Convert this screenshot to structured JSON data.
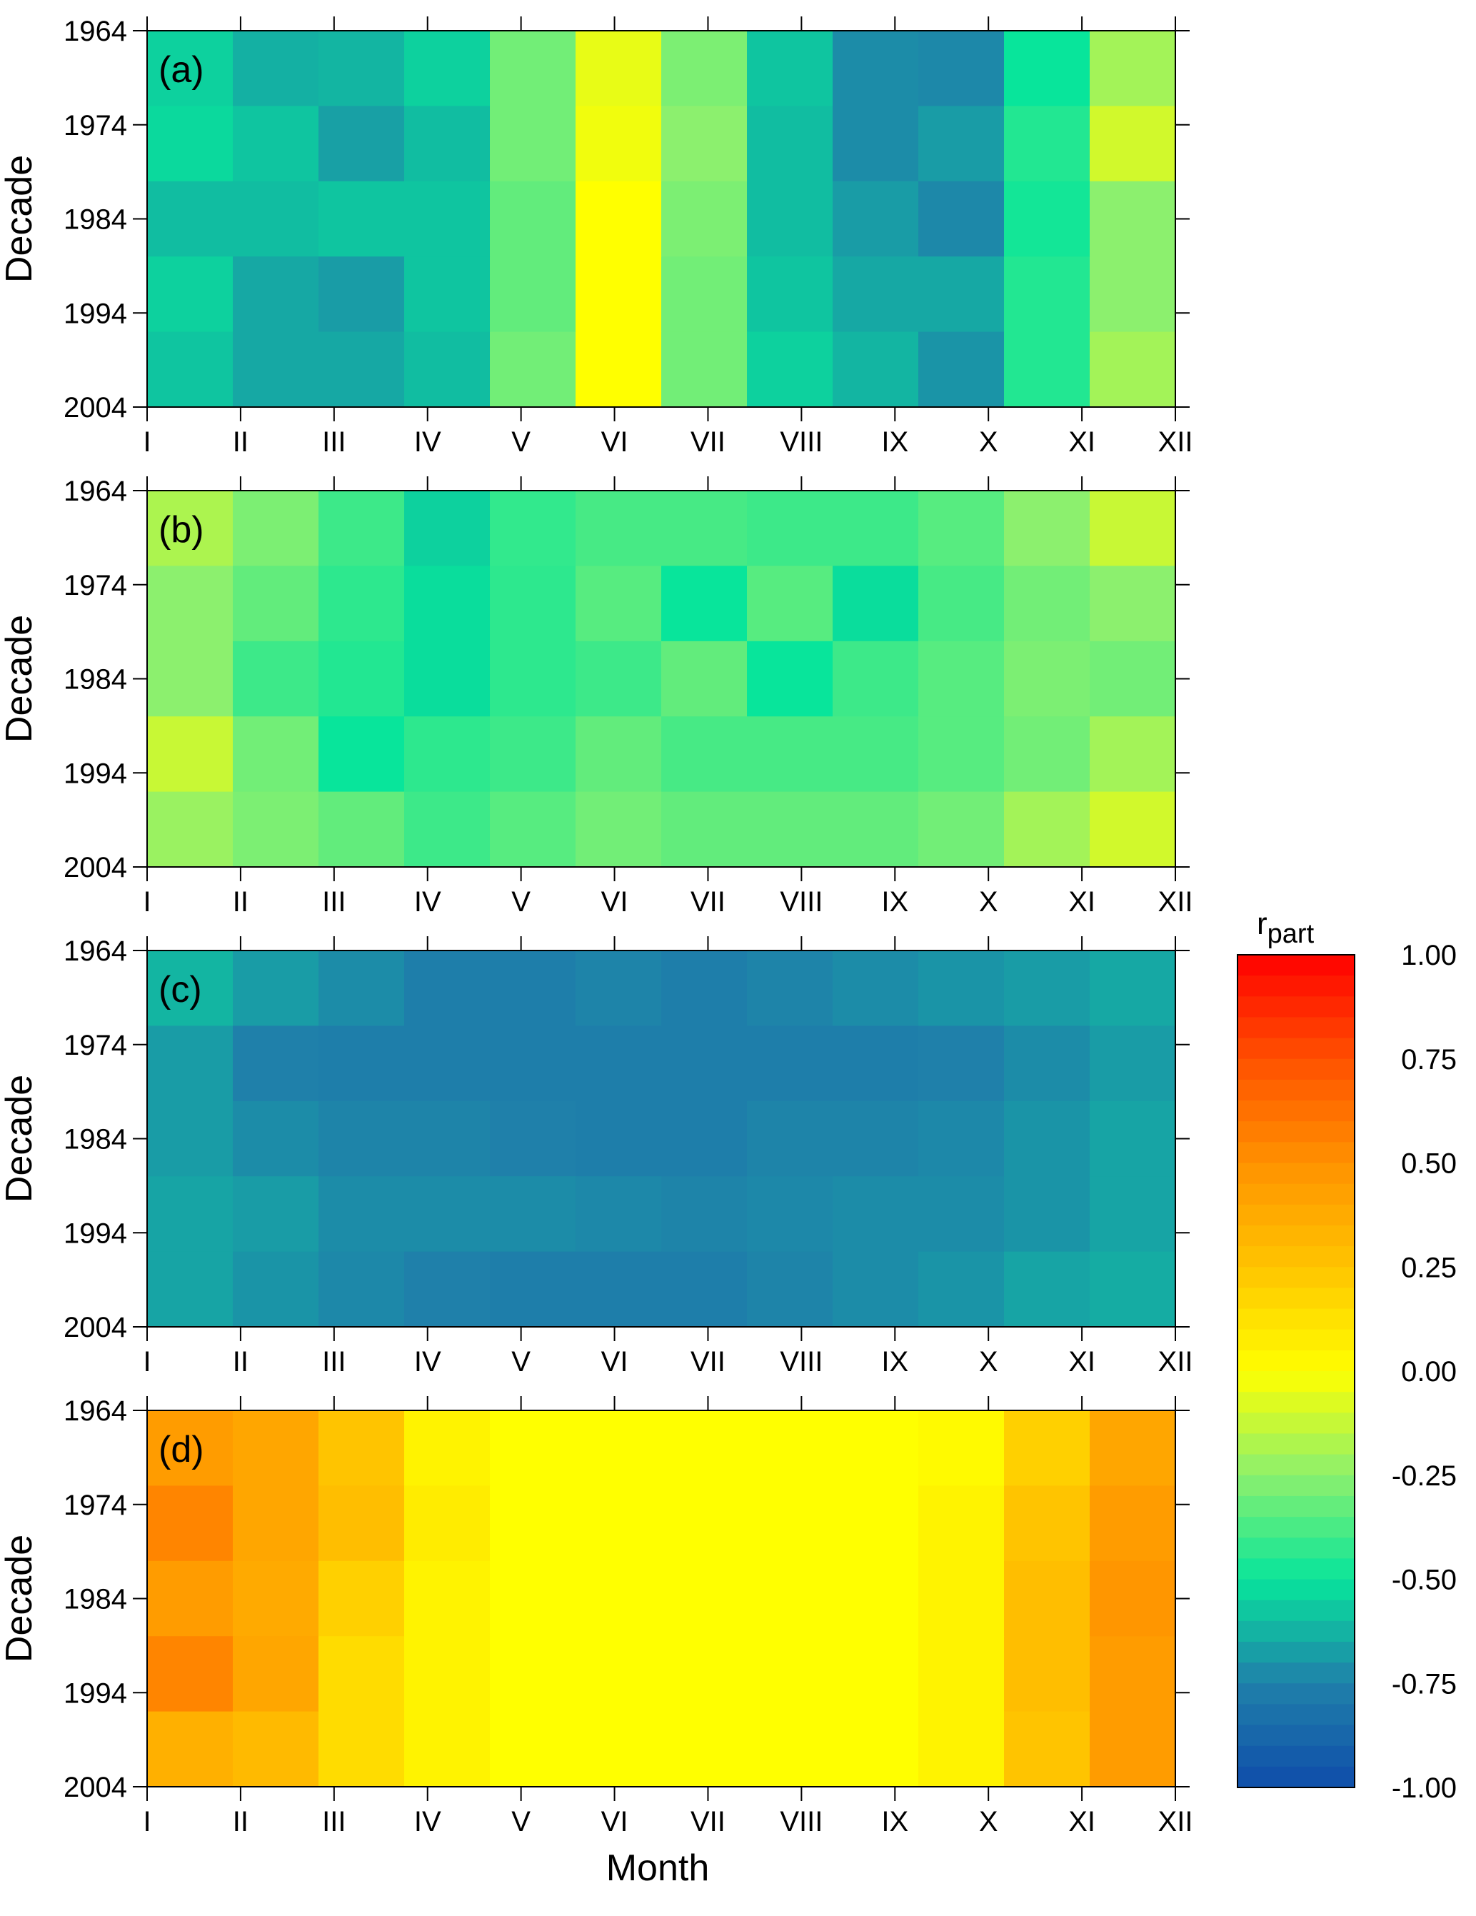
{
  "figure": {
    "xlabel": "Month",
    "ylabel": "Decade",
    "colorbar_title": "r",
    "colorbar_subscript": "part"
  },
  "chart_data": [
    {
      "type": "heatmap",
      "panel_label": "(a)",
      "x": [
        "I",
        "II",
        "III",
        "IV",
        "V",
        "VI",
        "VII",
        "VIII",
        "IX",
        "X",
        "XI",
        "XII"
      ],
      "y": [
        1964,
        1974,
        1984,
        1994,
        2004
      ],
      "values": [
        [
          -0.55,
          -0.63,
          -0.62,
          -0.55,
          -0.3,
          -0.05,
          -0.28,
          -0.58,
          -0.72,
          -0.73,
          -0.5,
          -0.2
        ],
        [
          -0.53,
          -0.58,
          -0.67,
          -0.6,
          -0.3,
          -0.03,
          -0.25,
          -0.6,
          -0.72,
          -0.68,
          -0.45,
          -0.1
        ],
        [
          -0.6,
          -0.6,
          -0.58,
          -0.58,
          -0.33,
          0.0,
          -0.28,
          -0.6,
          -0.68,
          -0.73,
          -0.48,
          -0.25
        ],
        [
          -0.55,
          -0.65,
          -0.68,
          -0.58,
          -0.33,
          0.0,
          -0.3,
          -0.58,
          -0.65,
          -0.65,
          -0.45,
          -0.25
        ],
        [
          -0.58,
          -0.65,
          -0.65,
          -0.6,
          -0.3,
          0.0,
          -0.3,
          -0.55,
          -0.62,
          -0.7,
          -0.45,
          -0.2
        ]
      ]
    },
    {
      "type": "heatmap",
      "panel_label": "(b)",
      "x": [
        "I",
        "II",
        "III",
        "IV",
        "V",
        "VI",
        "VII",
        "VIII",
        "IX",
        "X",
        "XI",
        "XII"
      ],
      "y": [
        1964,
        1974,
        1984,
        1994,
        2004
      ],
      "values": [
        [
          -0.18,
          -0.28,
          -0.4,
          -0.55,
          -0.42,
          -0.38,
          -0.38,
          -0.4,
          -0.4,
          -0.35,
          -0.25,
          -0.12
        ],
        [
          -0.25,
          -0.33,
          -0.43,
          -0.52,
          -0.43,
          -0.35,
          -0.5,
          -0.35,
          -0.52,
          -0.38,
          -0.3,
          -0.25
        ],
        [
          -0.25,
          -0.4,
          -0.45,
          -0.52,
          -0.43,
          -0.4,
          -0.33,
          -0.5,
          -0.4,
          -0.35,
          -0.28,
          -0.3
        ],
        [
          -0.12,
          -0.3,
          -0.5,
          -0.43,
          -0.4,
          -0.33,
          -0.38,
          -0.38,
          -0.38,
          -0.35,
          -0.3,
          -0.2
        ],
        [
          -0.22,
          -0.28,
          -0.33,
          -0.4,
          -0.35,
          -0.3,
          -0.33,
          -0.33,
          -0.33,
          -0.3,
          -0.2,
          -0.1
        ]
      ]
    },
    {
      "type": "heatmap",
      "panel_label": "(c)",
      "x": [
        "I",
        "II",
        "III",
        "IV",
        "V",
        "VI",
        "VII",
        "VIII",
        "IX",
        "X",
        "XI",
        "XII"
      ],
      "y": [
        1964,
        1974,
        1984,
        1994,
        2004
      ],
      "values": [
        [
          -0.62,
          -0.68,
          -0.72,
          -0.76,
          -0.76,
          -0.74,
          -0.76,
          -0.74,
          -0.72,
          -0.7,
          -0.68,
          -0.65
        ],
        [
          -0.68,
          -0.75,
          -0.76,
          -0.76,
          -0.76,
          -0.76,
          -0.76,
          -0.76,
          -0.76,
          -0.75,
          -0.72,
          -0.68
        ],
        [
          -0.68,
          -0.72,
          -0.74,
          -0.74,
          -0.75,
          -0.76,
          -0.76,
          -0.74,
          -0.74,
          -0.73,
          -0.7,
          -0.66
        ],
        [
          -0.66,
          -0.68,
          -0.72,
          -0.72,
          -0.72,
          -0.73,
          -0.74,
          -0.73,
          -0.72,
          -0.72,
          -0.7,
          -0.66
        ],
        [
          -0.66,
          -0.7,
          -0.73,
          -0.75,
          -0.76,
          -0.76,
          -0.76,
          -0.74,
          -0.72,
          -0.7,
          -0.66,
          -0.64
        ]
      ]
    },
    {
      "type": "heatmap",
      "panel_label": "(d)",
      "x": [
        "I",
        "II",
        "III",
        "IV",
        "V",
        "VI",
        "VII",
        "VIII",
        "IX",
        "X",
        "XI",
        "XII"
      ],
      "y": [
        1964,
        1974,
        1984,
        1994,
        2004
      ],
      "values": [
        [
          0.45,
          0.4,
          0.25,
          0.05,
          0.0,
          0.0,
          0.0,
          0.0,
          0.0,
          0.02,
          0.2,
          0.4
        ],
        [
          0.55,
          0.4,
          0.28,
          0.08,
          0.0,
          0.0,
          0.0,
          0.0,
          0.0,
          0.05,
          0.25,
          0.45
        ],
        [
          0.45,
          0.38,
          0.2,
          0.05,
          0.0,
          0.0,
          0.0,
          0.0,
          0.0,
          0.05,
          0.28,
          0.48
        ],
        [
          0.55,
          0.4,
          0.15,
          0.05,
          0.0,
          0.0,
          0.0,
          0.0,
          0.0,
          0.05,
          0.28,
          0.45
        ],
        [
          0.35,
          0.3,
          0.15,
          0.05,
          0.0,
          0.0,
          0.0,
          0.0,
          0.0,
          0.05,
          0.25,
          0.45
        ]
      ]
    }
  ],
  "colorbar": {
    "min": -1.0,
    "max": 1.0,
    "ticks": [
      "1.00",
      "0.75",
      "0.50",
      "0.25",
      "0.00",
      "-0.25",
      "-0.50",
      "-0.75",
      "-1.00"
    ],
    "tick_values": [
      1.0,
      0.75,
      0.5,
      0.25,
      0.0,
      -0.25,
      -0.5,
      -0.75,
      -1.0
    ],
    "levels": 40
  }
}
